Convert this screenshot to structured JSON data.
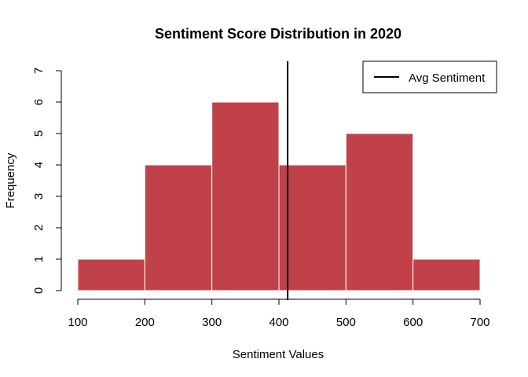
{
  "chart_data": {
    "type": "bar",
    "title": "Sentiment Score Distribution in 2020",
    "xlabel": "Sentiment Values",
    "ylabel": "Frequency",
    "bins": [
      {
        "start": 100,
        "end": 200,
        "count": 1
      },
      {
        "start": 200,
        "end": 300,
        "count": 4
      },
      {
        "start": 300,
        "end": 400,
        "count": 6
      },
      {
        "start": 400,
        "end": 500,
        "count": 4
      },
      {
        "start": 500,
        "end": 600,
        "count": 5
      },
      {
        "start": 600,
        "end": 700,
        "count": 1
      }
    ],
    "xlim": [
      100,
      700
    ],
    "ylim": [
      0,
      7
    ],
    "xticks": [
      100,
      200,
      300,
      400,
      500,
      600,
      700
    ],
    "yticks": [
      0,
      1,
      2,
      3,
      4,
      5,
      6,
      7
    ],
    "bar_color": "#c0414a",
    "bar_edge_color": "#ffffff",
    "average_line": {
      "value": 413,
      "color": "#000000"
    },
    "legend": {
      "entries": [
        "Avg Sentiment"
      ],
      "placement": "top-right"
    },
    "grid": false
  }
}
